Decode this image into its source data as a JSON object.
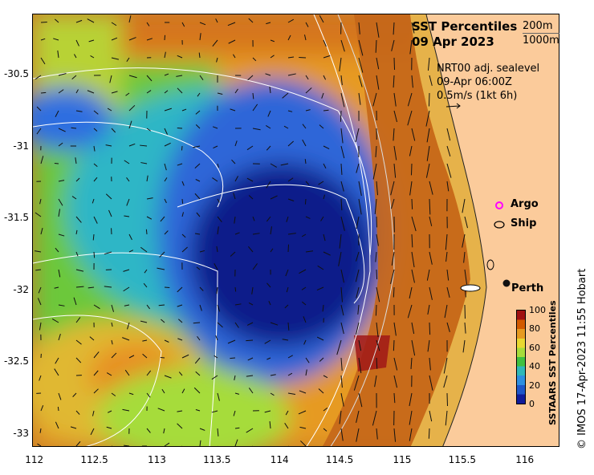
{
  "title": {
    "line1": "SST Percentiles",
    "line2": "09 Apr 2023"
  },
  "contours": {
    "line1": "200m",
    "line2": "1000m"
  },
  "currents": {
    "source": "NRT00 adj. sealevel",
    "time": "09-Apr 06:00Z",
    "scale": "0.5m/s (1kt 6h)"
  },
  "legend": {
    "argo": "Argo",
    "ship": "Ship"
  },
  "city": {
    "name": "Perth"
  },
  "colorbar": {
    "title": "SSTAARS SST Percentiles",
    "ticks": [
      "100",
      "80",
      "60",
      "40",
      "20",
      "0"
    ],
    "colors": [
      "#a01010",
      "#d25a00",
      "#e69a20",
      "#e8d830",
      "#a6dc3a",
      "#40c040",
      "#2fb8b8",
      "#2e8fe0",
      "#1e56c8",
      "#101c9a"
    ]
  },
  "credit": "© IMOS 17-Apr-2023 11:55 Hobart",
  "axes": {
    "x_ticks": [
      "112",
      "112.5",
      "113",
      "113.5",
      "114",
      "114.5",
      "115",
      "115.5",
      "116"
    ],
    "y_ticks": [
      "-30.5",
      "-31",
      "-31.5",
      "-32",
      "-32.5",
      "-33"
    ]
  },
  "colors": {
    "land": "#fbcb9b",
    "shelf": "#c87c2a",
    "cold": "#0a1a8a"
  }
}
